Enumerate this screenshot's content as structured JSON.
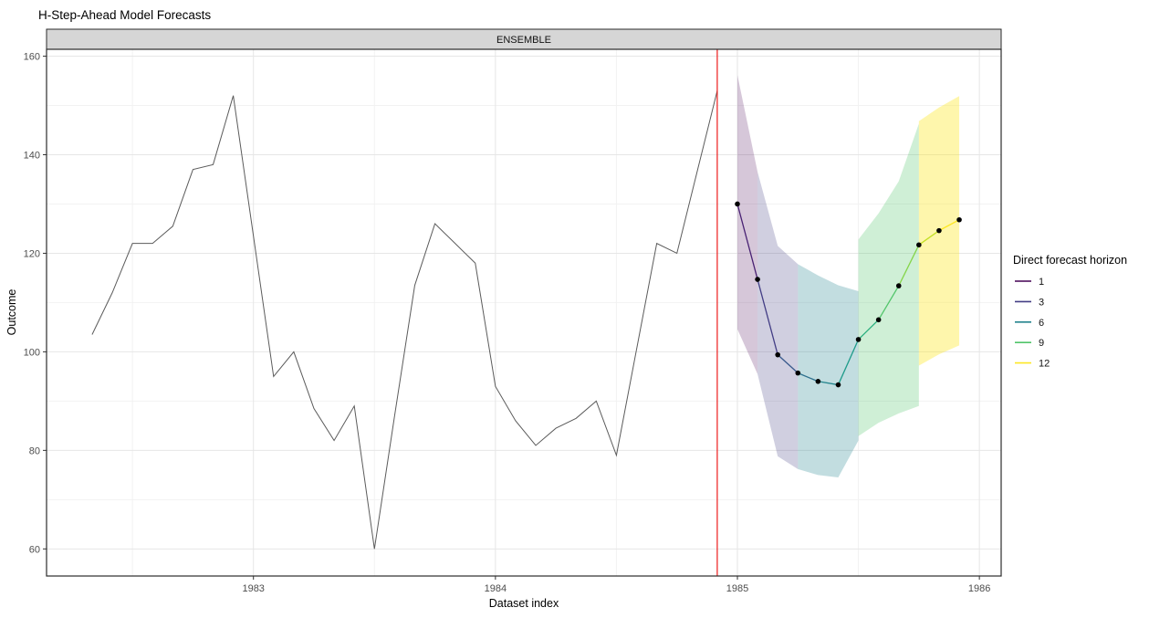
{
  "title": "H-Step-Ahead Model Forecasts",
  "facet": {
    "label": "ENSEMBLE"
  },
  "axes": {
    "xlabel": "Dataset index",
    "ylabel": "Outcome",
    "x_ticks": [
      1983,
      1984,
      1985,
      1986
    ],
    "x_minor": [
      1982.5,
      1983.5,
      1984.5,
      1985.5
    ],
    "y_ticks": [
      60,
      80,
      100,
      120,
      140,
      160
    ],
    "y_minor": [
      70,
      90,
      110,
      130,
      150
    ],
    "x_range": [
      1982.145,
      1986.09
    ],
    "y_range": [
      54.5,
      161.4
    ]
  },
  "legend": {
    "title": "Direct forecast horizon",
    "entries": [
      {
        "label": "1",
        "color": "#440154"
      },
      {
        "label": "3",
        "color": "#433E85"
      },
      {
        "label": "6",
        "color": "#25858E"
      },
      {
        "label": "9",
        "color": "#51C56A"
      },
      {
        "label": "12",
        "color": "#FDE725"
      }
    ]
  },
  "chart_data": {
    "type": "line",
    "title": "H-Step-Ahead Model Forecasts",
    "xlabel": "Dataset index",
    "ylabel": "Outcome",
    "grid": true,
    "legend_position": "right",
    "history": {
      "color": "#5B5B5B",
      "x": [
        1982.3333,
        1982.4167,
        1982.5,
        1982.5833,
        1982.6667,
        1982.75,
        1982.8333,
        1982.9167,
        1983.0,
        1983.0833,
        1983.1667,
        1983.25,
        1983.3333,
        1983.4167,
        1983.5,
        1983.5833,
        1983.6667,
        1983.75,
        1983.8333,
        1983.9167,
        1984.0,
        1984.0833,
        1984.1667,
        1984.25,
        1984.3333,
        1984.4167,
        1984.5,
        1984.5833,
        1984.6667,
        1984.75,
        1984.8333,
        1984.9167
      ],
      "y": [
        103.5,
        112,
        122,
        122,
        125.5,
        137,
        138,
        152,
        123.5,
        95,
        100,
        88.5,
        82,
        89,
        60,
        87,
        113.5,
        126,
        122,
        118,
        93,
        86,
        81,
        84.5,
        86.5,
        90,
        79,
        100.5,
        122,
        120,
        136.5,
        153
      ]
    },
    "forecast_vline": {
      "x": 1984.9167,
      "color": "#EC1C1C"
    },
    "forecast": {
      "point_color": "#000000",
      "x": [
        1985.0,
        1985.0833,
        1985.1667,
        1985.25,
        1985.3333,
        1985.4167,
        1985.5,
        1985.5833,
        1985.6667,
        1985.75,
        1985.8333,
        1985.9167
      ],
      "y": [
        130,
        114.7,
        99.4,
        95.7,
        94,
        93.3,
        102.5,
        106.5,
        113.4,
        121.7,
        124.6,
        126.8
      ],
      "horizons": [
        1,
        2,
        3,
        4,
        5,
        6,
        7,
        8,
        9,
        10,
        11,
        12
      ],
      "horizon_colors": [
        "#440154",
        "#482173",
        "#433E85",
        "#38598C",
        "#2D708E",
        "#25858E",
        "#1E9B8A",
        "#2BB07F",
        "#51C56A",
        "#85D54A",
        "#C2DF23",
        "#FDE725"
      ]
    },
    "ribbons": [
      {
        "horizon": 1,
        "fill": "#440154",
        "opacity": 0.22,
        "x": [
          1985.0,
          1985.0833
        ],
        "lower": [
          104.6,
          95.5
        ],
        "upper": [
          156.2,
          136.5
        ]
      },
      {
        "horizon": 3,
        "fill": "#433E85",
        "opacity": 0.25,
        "x": [
          1985.0833,
          1985.1667,
          1985.25
        ],
        "lower": [
          95.5,
          78.8,
          76.2
        ],
        "upper": [
          136.5,
          121.5,
          117.8
        ]
      },
      {
        "horizon": 6,
        "fill": "#25858E",
        "opacity": 0.28,
        "x": [
          1985.25,
          1985.3333,
          1985.4167,
          1985.5
        ],
        "lower": [
          76.2,
          75,
          74.5,
          82
        ],
        "upper": [
          117.8,
          115.5,
          113.5,
          112.3
        ]
      },
      {
        "horizon": 9,
        "fill": "#51C56A",
        "opacity": 0.28,
        "x": [
          1985.5,
          1985.5833,
          1985.6667,
          1985.75
        ],
        "lower": [
          82.9,
          85.6,
          87.5,
          89
        ],
        "upper": [
          122.8,
          128.1,
          134.6,
          146.3
        ]
      },
      {
        "horizon": 12,
        "fill": "#FDE725",
        "opacity": 0.38,
        "x": [
          1985.75,
          1985.8333,
          1985.9167
        ],
        "lower": [
          97.2,
          99.5,
          101.3
        ],
        "upper": [
          146.8,
          149.6,
          151.9
        ]
      }
    ]
  },
  "colors": {
    "strip_bg": "#D6D6D6",
    "panel_border": "#2B2B2B",
    "grid_major": "#E6E6E6",
    "grid_minor": "#F2F2F2",
    "tick_label": "#4D4D4D",
    "axis_title": "#000000",
    "title": "#000000"
  }
}
